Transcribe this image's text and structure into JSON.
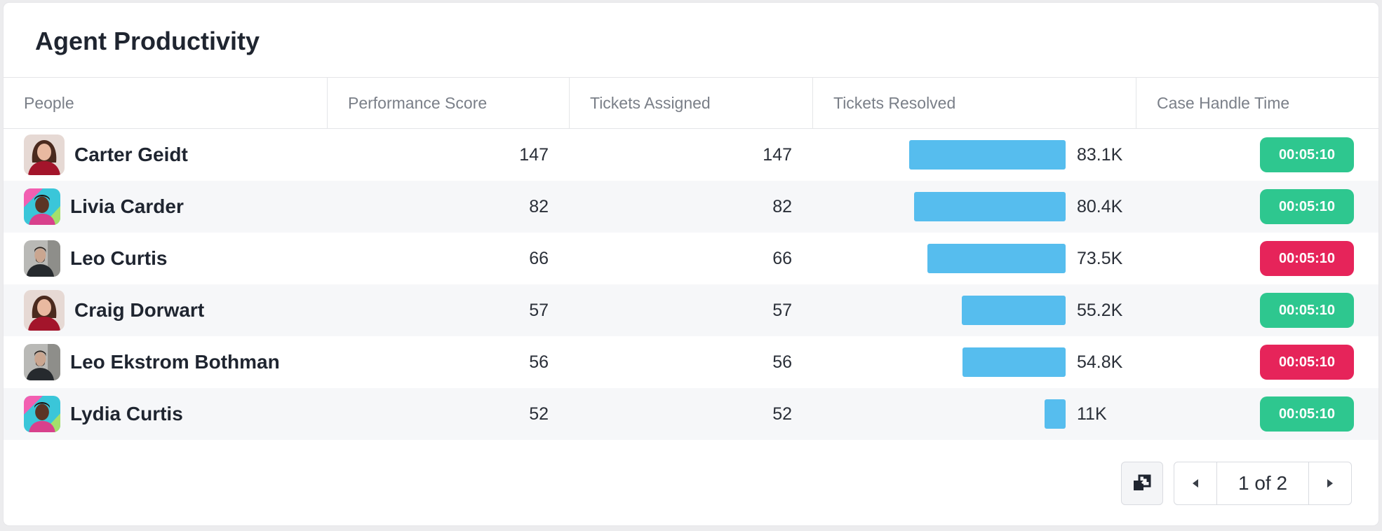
{
  "title": "Agent Productivity",
  "columns": [
    "People",
    "Performance Score",
    "Tickets Assigned",
    "Tickets Resolved",
    "Case Handle Time"
  ],
  "rows": [
    {
      "name": "Carter Geidt",
      "avatar": "avatar-woman-red",
      "score": "147",
      "assigned": "147",
      "resolved_label": "83.1K",
      "resolved_value": 83.1,
      "handle_time": "00:05:10",
      "status": "good"
    },
    {
      "name": "Livia Carder",
      "avatar": "avatar-man-colorful",
      "score": "82",
      "assigned": "82",
      "resolved_label": "80.4K",
      "resolved_value": 80.4,
      "handle_time": "00:05:10",
      "status": "good"
    },
    {
      "name": "Leo Curtis",
      "avatar": "avatar-man-dark",
      "score": "66",
      "assigned": "66",
      "resolved_label": "73.5K",
      "resolved_value": 73.5,
      "handle_time": "00:05:10",
      "status": "bad"
    },
    {
      "name": "Craig Dorwart",
      "avatar": "avatar-woman-red",
      "score": "57",
      "assigned": "57",
      "resolved_label": "55.2K",
      "resolved_value": 55.2,
      "handle_time": "00:05:10",
      "status": "good"
    },
    {
      "name": "Leo Ekstrom Bothman",
      "avatar": "avatar-man-dark",
      "score": "56",
      "assigned": "56",
      "resolved_label": "54.8K",
      "resolved_value": 54.8,
      "handle_time": "00:05:10",
      "status": "bad"
    },
    {
      "name": "Lydia Curtis",
      "avatar": "avatar-man-colorful",
      "score": "52",
      "assigned": "52",
      "resolved_label": "11K",
      "resolved_value": 11,
      "handle_time": "00:05:10",
      "status": "good"
    }
  ],
  "colors": {
    "good": "#2ec78f",
    "bad": "#e6245a",
    "bar": "#56bdee"
  },
  "pagination": {
    "label": "1 of 2"
  },
  "icons": {
    "export": "export-icon",
    "prev": "chevron-left-icon",
    "next": "chevron-right-icon"
  }
}
